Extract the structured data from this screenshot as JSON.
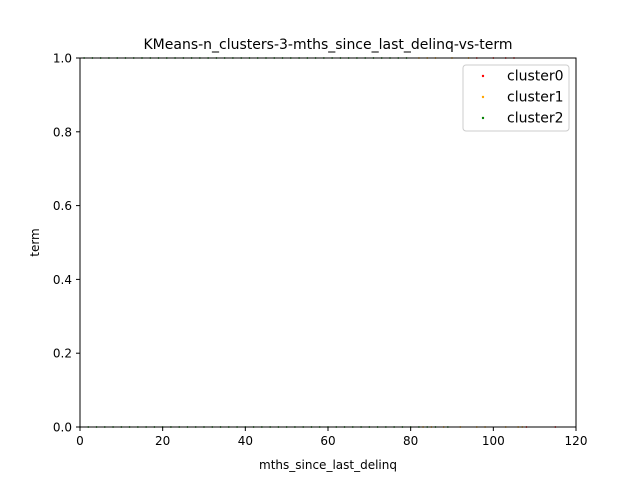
{
  "chart_data": {
    "type": "scatter",
    "title": "KMeans-n_clusters-3-mths_since_last_delinq-vs-term",
    "xlabel": "mths_since_last_delinq",
    "ylabel": "term",
    "xlim": [
      0,
      120
    ],
    "ylim": [
      0,
      1
    ],
    "x_ticks": [
      0,
      20,
      40,
      60,
      80,
      100,
      120
    ],
    "y_ticks": [
      0.0,
      0.2,
      0.4,
      0.6,
      0.8,
      1.0
    ],
    "x_tick_labels": [
      "0",
      "20",
      "40",
      "60",
      "80",
      "100",
      "120"
    ],
    "y_tick_labels": [
      "0.0",
      "0.2",
      "0.4",
      "0.6",
      "0.8",
      "1.0"
    ],
    "grid": false,
    "legend_position": "top-right",
    "series": [
      {
        "name": "cluster0",
        "color": "#ff0000",
        "points": [
          [
            96,
            1
          ],
          [
            100,
            1
          ],
          [
            103,
            1
          ],
          [
            105,
            1
          ],
          [
            108,
            0
          ],
          [
            115,
            0
          ]
        ]
      },
      {
        "name": "cluster1",
        "color": "#ffa500",
        "points": [
          [
            82,
            1
          ],
          [
            84,
            1
          ],
          [
            86,
            1
          ],
          [
            90,
            1
          ],
          [
            94,
            1
          ],
          [
            83,
            0
          ],
          [
            85,
            0
          ],
          [
            88,
            0
          ],
          [
            92,
            0
          ],
          [
            96,
            0
          ],
          [
            98,
            0
          ],
          [
            103,
            0
          ],
          [
            106,
            0
          ],
          [
            107,
            0
          ]
        ]
      },
      {
        "name": "cluster2",
        "color": "#008000",
        "points": [
          [
            1,
            1
          ],
          [
            3,
            1
          ],
          [
            5,
            1
          ],
          [
            7,
            1
          ],
          [
            9,
            1
          ],
          [
            11,
            1
          ],
          [
            13,
            1
          ],
          [
            15,
            1
          ],
          [
            17,
            1
          ],
          [
            19,
            1
          ],
          [
            21,
            1
          ],
          [
            23,
            1
          ],
          [
            25,
            1
          ],
          [
            27,
            1
          ],
          [
            29,
            1
          ],
          [
            31,
            1
          ],
          [
            33,
            1
          ],
          [
            35,
            1
          ],
          [
            37,
            1
          ],
          [
            39,
            1
          ],
          [
            41,
            1
          ],
          [
            43,
            1
          ],
          [
            45,
            1
          ],
          [
            47,
            1
          ],
          [
            49,
            1
          ],
          [
            51,
            1
          ],
          [
            53,
            1
          ],
          [
            55,
            1
          ],
          [
            57,
            1
          ],
          [
            59,
            1
          ],
          [
            61,
            1
          ],
          [
            63,
            1
          ],
          [
            65,
            1
          ],
          [
            67,
            1
          ],
          [
            69,
            1
          ],
          [
            71,
            1
          ],
          [
            73,
            1
          ],
          [
            75,
            1
          ],
          [
            77,
            1
          ],
          [
            79,
            1
          ],
          [
            0,
            0
          ],
          [
            2,
            0
          ],
          [
            4,
            0
          ],
          [
            6,
            0
          ],
          [
            8,
            0
          ],
          [
            10,
            0
          ],
          [
            12,
            0
          ],
          [
            14,
            0
          ],
          [
            16,
            0
          ],
          [
            18,
            0
          ],
          [
            20,
            0
          ],
          [
            22,
            0
          ],
          [
            24,
            0
          ],
          [
            26,
            0
          ],
          [
            28,
            0
          ],
          [
            30,
            0
          ],
          [
            32,
            0
          ],
          [
            34,
            0
          ],
          [
            36,
            0
          ],
          [
            38,
            0
          ],
          [
            40,
            0
          ],
          [
            42,
            0
          ],
          [
            44,
            0
          ],
          [
            46,
            0
          ],
          [
            48,
            0
          ],
          [
            50,
            0
          ],
          [
            52,
            0
          ],
          [
            54,
            0
          ],
          [
            56,
            0
          ],
          [
            58,
            0
          ],
          [
            60,
            0
          ],
          [
            62,
            0
          ],
          [
            64,
            0
          ],
          [
            66,
            0
          ],
          [
            68,
            0
          ],
          [
            70,
            0
          ],
          [
            72,
            0
          ],
          [
            74,
            0
          ],
          [
            76,
            0
          ],
          [
            78,
            0
          ],
          [
            80,
            0
          ],
          [
            82,
            0
          ],
          [
            84,
            0
          ],
          [
            86,
            0
          ],
          [
            89,
            0
          ]
        ]
      }
    ]
  }
}
